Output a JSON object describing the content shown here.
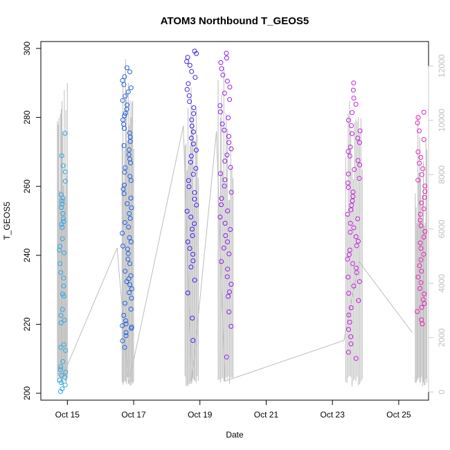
{
  "chart_data": {
    "type": "scatter",
    "title": "ATOM3 Northbound T_GEOS5",
    "xlabel": "Date",
    "ylabel": "T_GEOS5",
    "x_unit": "days since Oct 15 00:00",
    "x_ticks": [
      {
        "value": 0,
        "label": "Oct 15"
      },
      {
        "value": 2,
        "label": "Oct 17"
      },
      {
        "value": 4,
        "label": "Oct 19"
      },
      {
        "value": 6,
        "label": "Oct 21"
      },
      {
        "value": 8,
        "label": "Oct 23"
      },
      {
        "value": 10,
        "label": "Oct 25"
      }
    ],
    "xlim": [
      -0.8,
      10.9
    ],
    "y_left": {
      "ticks": [
        200,
        220,
        240,
        260,
        280,
        300
      ],
      "lim": [
        198,
        302
      ]
    },
    "y_right": {
      "ticks": [
        0,
        2000,
        4000,
        6000,
        8000,
        10000,
        12000
      ],
      "lim": [
        -300,
        12900
      ],
      "color": "#c8c8c8"
    },
    "grid": false,
    "legend": "none",
    "colors": {
      "flight1": "#2ca8e6",
      "flight2": "#1f5fe0",
      "flight3": "#3a1ff0",
      "flight4": "#8b1fe6",
      "flight5": "#c41fdc",
      "flight6": "#e61fb8",
      "altitude": "#bdbdbd"
    },
    "series": [
      {
        "color_key": "flight1",
        "x_range": [
          -0.25,
          -0.05
        ],
        "y_values": [
          200.5,
          201.3,
          202.4,
          203.1,
          203.8,
          204.6,
          205.2,
          206.1,
          206.9,
          207.7,
          209.2,
          212.4,
          213.3,
          214.1,
          220.4,
          221.2,
          222.6,
          224.3,
          228.2,
          228.8,
          231.1,
          233.4,
          235.0,
          237.6,
          240.7,
          241.5,
          242.6,
          244.8,
          248.1,
          249.0,
          249.8,
          250.6,
          252.1,
          253.9,
          254.9,
          255.8,
          256.6,
          257.6,
          261.5,
          264.2,
          266.0,
          268.9,
          275.4
        ]
      },
      {
        "color_key": "flight2",
        "x_range": [
          1.65,
          1.95
        ],
        "y_values": [
          213.3,
          215.2,
          216.7,
          217.6,
          218.8,
          219.2,
          219.6,
          220.1,
          221.0,
          222.6,
          224.4,
          226.1,
          227.6,
          229.2,
          230.3,
          231.5,
          232.4,
          233.2,
          234.1,
          235.4,
          237.6,
          238.9,
          240.5,
          241.8,
          242.7,
          243.9,
          245.1,
          246.4,
          248.2,
          249.5,
          250.7,
          252.1,
          253.8,
          255.0,
          256.6,
          257.9,
          259.2,
          260.4,
          261.7,
          262.9,
          264.1,
          265.4,
          266.8,
          267.9,
          269.2,
          270.6,
          271.8,
          273.0,
          274.3,
          275.5,
          276.8,
          278.0,
          279.3,
          280.5,
          281.2,
          282.4,
          283.6,
          284.9,
          286.2,
          287.4,
          288.6,
          289.5,
          290.7,
          291.8,
          293.2,
          294.4
        ]
      },
      {
        "color_key": "flight3",
        "x_range": [
          3.6,
          3.9
        ],
        "y_values": [
          215.3,
          221.8,
          229.1,
          232.8,
          236.6,
          238.4,
          240.3,
          242.0,
          243.9,
          245.7,
          247.6,
          249.2,
          251.1,
          252.8,
          254.6,
          256.3,
          258.2,
          259.9,
          261.7,
          263.5,
          265.2,
          267.0,
          268.8,
          270.5,
          272.3,
          274.0,
          275.8,
          277.5,
          279.3,
          281.1,
          282.8,
          284.6,
          286.3,
          288.1,
          289.8,
          291.6,
          293.3,
          295.1,
          296.2,
          297.4,
          298.5,
          299.2
        ]
      },
      {
        "color_key": "flight4",
        "x_range": [
          4.6,
          4.95
        ],
        "y_values": [
          210.5,
          219.4,
          223.6,
          228.1,
          229.4,
          231.6,
          233.8,
          236.0,
          238.2,
          240.4,
          242.1,
          243.9,
          245.7,
          247.5,
          249.3,
          251.1,
          252.9,
          254.7,
          256.5,
          258.3,
          260.1,
          261.9,
          263.7,
          265.5,
          267.3,
          269.1,
          270.9,
          272.7,
          274.5,
          276.3,
          278.1,
          279.9,
          281.6,
          283.4,
          285.2,
          287.0,
          288.8,
          290.5,
          292.3,
          294.1,
          295.9,
          297.2,
          298.6
        ]
      },
      {
        "color_key": "flight5",
        "x_range": [
          8.45,
          8.85
        ],
        "y_values": [
          210.1,
          211.9,
          214.3,
          216.4,
          218.5,
          220.6,
          222.7,
          224.8,
          226.9,
          229.0,
          231.1,
          232.4,
          233.7,
          235.0,
          236.3,
          237.6,
          238.9,
          240.2,
          241.5,
          242.8,
          244.1,
          245.4,
          246.7,
          248.0,
          249.3,
          250.6,
          251.9,
          253.2,
          254.5,
          255.8,
          257.1,
          258.4,
          259.7,
          261.0,
          262.3,
          263.6,
          264.9,
          266.2,
          267.5,
          268.8,
          270.1,
          271.4,
          272.7,
          274.0,
          275.3,
          276.1,
          277.6,
          279.2,
          281.4,
          283.8,
          285.6,
          287.9,
          290.0
        ]
      },
      {
        "color_key": "flight6",
        "x_range": [
          10.55,
          10.8
        ],
        "y_values": [
          220.1,
          221.3,
          223.7,
          224.9,
          226.0,
          227.2,
          228.8,
          230.4,
          232.1,
          233.7,
          235.4,
          237.0,
          238.7,
          240.3,
          242.0,
          243.6,
          245.3,
          246.9,
          248.6,
          250.2,
          251.9,
          253.5,
          255.2,
          256.8,
          258.5,
          260.1,
          261.8,
          263.4,
          265.1,
          266.7,
          268.4,
          270.0,
          273.6,
          276.1,
          278.4,
          280.0,
          281.5
        ]
      }
    ],
    "altitude_series": {
      "color_key": "altitude",
      "axis": "right",
      "segments": [
        {
          "x_range": [
            -0.3,
            0.0
          ],
          "peak": 11800
        },
        {
          "x_range": [
            1.65,
            2.0
          ],
          "peak": 12400
        },
        {
          "x_range": [
            3.55,
            3.95
          ],
          "peak": 12300
        },
        {
          "x_range": [
            4.55,
            5.0
          ],
          "peak": 12000
        },
        {
          "x_range": [
            8.4,
            8.9
          ],
          "peak": 11800
        },
        {
          "x_range": [
            10.5,
            10.85
          ],
          "peak": 10300
        }
      ],
      "connectors": [
        {
          "x": -0.1,
          "y": 700
        },
        {
          "x": 1.5,
          "y": 5300
        },
        {
          "x": 1.85,
          "y": 300
        },
        {
          "x": 3.5,
          "y": 9800
        },
        {
          "x": 3.75,
          "y": 300
        },
        {
          "x": 4.5,
          "y": 9600
        },
        {
          "x": 4.75,
          "y": 400
        },
        {
          "x": 8.35,
          "y": 1900
        },
        {
          "x": 8.8,
          "y": 4800
        },
        {
          "x": 10.4,
          "y": 2200
        }
      ]
    }
  }
}
